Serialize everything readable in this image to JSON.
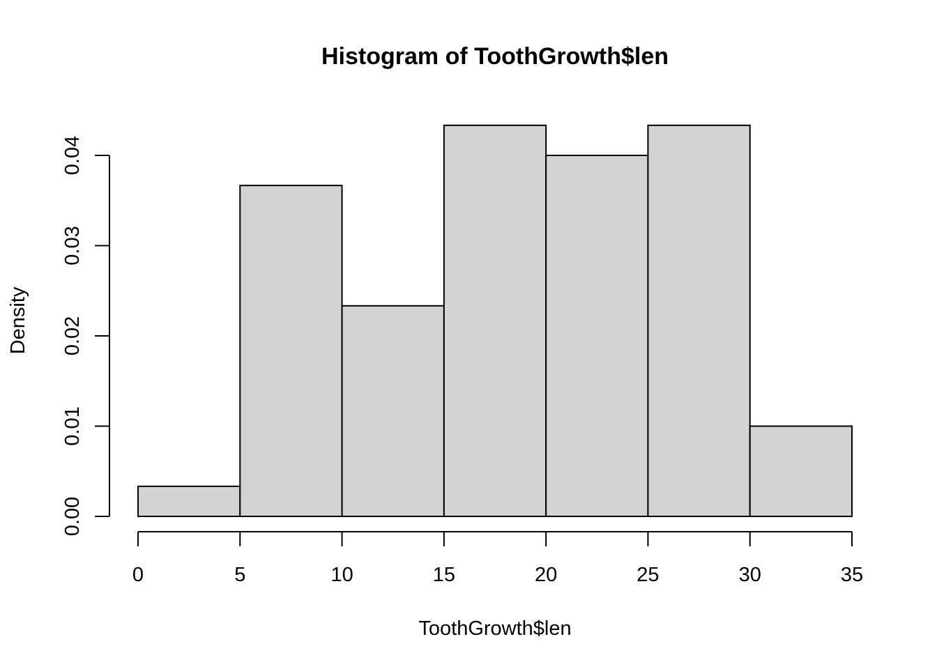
{
  "chart_data": {
    "type": "bar",
    "title": "Histogram of ToothGrowth$len",
    "xlabel": "ToothGrowth$len",
    "ylabel": "Density",
    "bins": [
      {
        "start": 0,
        "end": 5,
        "density": 0.003333
      },
      {
        "start": 5,
        "end": 10,
        "density": 0.036667
      },
      {
        "start": 10,
        "end": 15,
        "density": 0.023333
      },
      {
        "start": 15,
        "end": 20,
        "density": 0.043333
      },
      {
        "start": 20,
        "end": 25,
        "density": 0.04
      },
      {
        "start": 25,
        "end": 30,
        "density": 0.043333
      },
      {
        "start": 30,
        "end": 35,
        "density": 0.01
      }
    ],
    "xlim": [
      0,
      35
    ],
    "ylim": [
      0,
      0.04
    ],
    "x_ticks": [
      0,
      5,
      10,
      15,
      20,
      25,
      30,
      35
    ],
    "y_ticks": [
      0,
      0.01,
      0.02,
      0.03,
      0.04
    ],
    "y_tick_labels": [
      "0.00",
      "0.01",
      "0.02",
      "0.03",
      "0.04"
    ],
    "bar_color": "#d3d3d3",
    "grid": false
  }
}
